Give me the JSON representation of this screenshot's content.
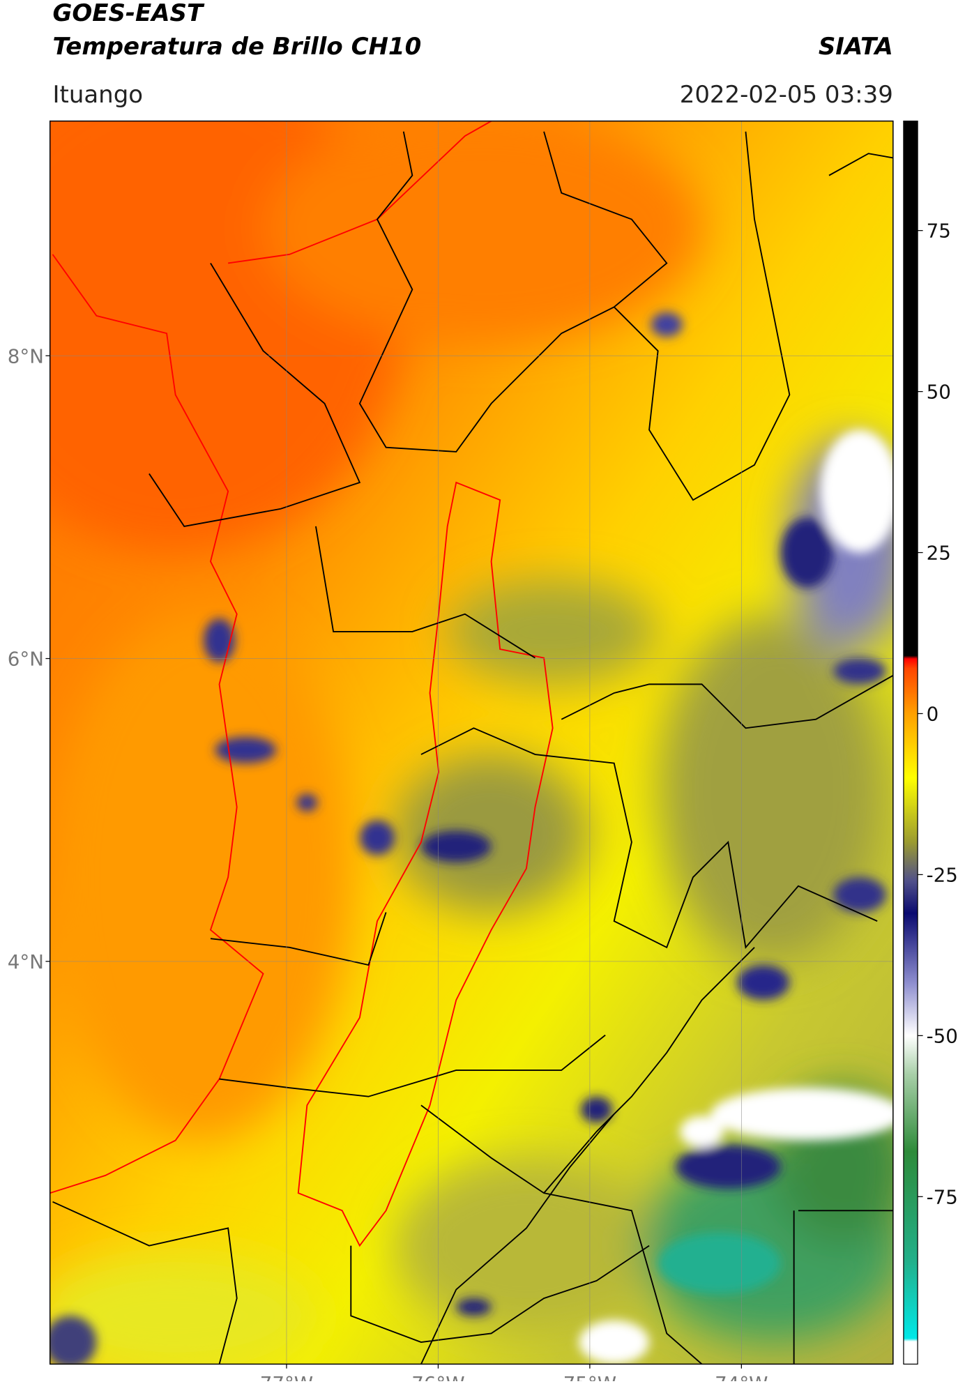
{
  "header": {
    "title_line1": "GOES-EAST",
    "title_line2": "Temperatura de Brillo CH10",
    "organization": "SIATA",
    "location": "Ituango",
    "datetime": "2022-02-05 03:39"
  },
  "map": {
    "lon_range": [
      -78.56,
      -73.0
    ],
    "lat_range": [
      1.34,
      9.55
    ],
    "lat_ticks": [
      {
        "value": 8,
        "label": "8°N"
      },
      {
        "value": 6,
        "label": "6°N"
      },
      {
        "value": 4,
        "label": "4°N"
      }
    ],
    "lon_ticks": [
      {
        "value": -77,
        "label": "77°W"
      },
      {
        "value": -76,
        "label": "76°W"
      },
      {
        "value": -75,
        "label": "75°W"
      },
      {
        "value": -74,
        "label": "74°W"
      }
    ]
  },
  "colorbar": {
    "range": [
      -101,
      92
    ],
    "ticks": [
      75,
      50,
      25,
      0,
      -25,
      -50,
      -75
    ],
    "stops": [
      {
        "value": -101,
        "color": "#ffffff"
      },
      {
        "value": -97.5,
        "color": "#ffffff"
      },
      {
        "value": -97,
        "color": "#00e8e8"
      },
      {
        "value": -85,
        "color": "#22b08a"
      },
      {
        "value": -68,
        "color": "#2e8b3a"
      },
      {
        "value": -56,
        "color": "#a8cfa8"
      },
      {
        "value": -50,
        "color": "#ffffff"
      },
      {
        "value": -42,
        "color": "#9090d0"
      },
      {
        "value": -31,
        "color": "#0a0a70"
      },
      {
        "value": -26,
        "color": "#50508a"
      },
      {
        "value": -20,
        "color": "#9a9a30"
      },
      {
        "value": -10,
        "color": "#ffff00"
      },
      {
        "value": 0,
        "color": "#ffa000"
      },
      {
        "value": 7,
        "color": "#ff4500"
      },
      {
        "value": 8.5,
        "color": "#ff0000"
      },
      {
        "value": 9,
        "color": "#000000"
      },
      {
        "value": 92,
        "color": "#000000"
      }
    ]
  }
}
